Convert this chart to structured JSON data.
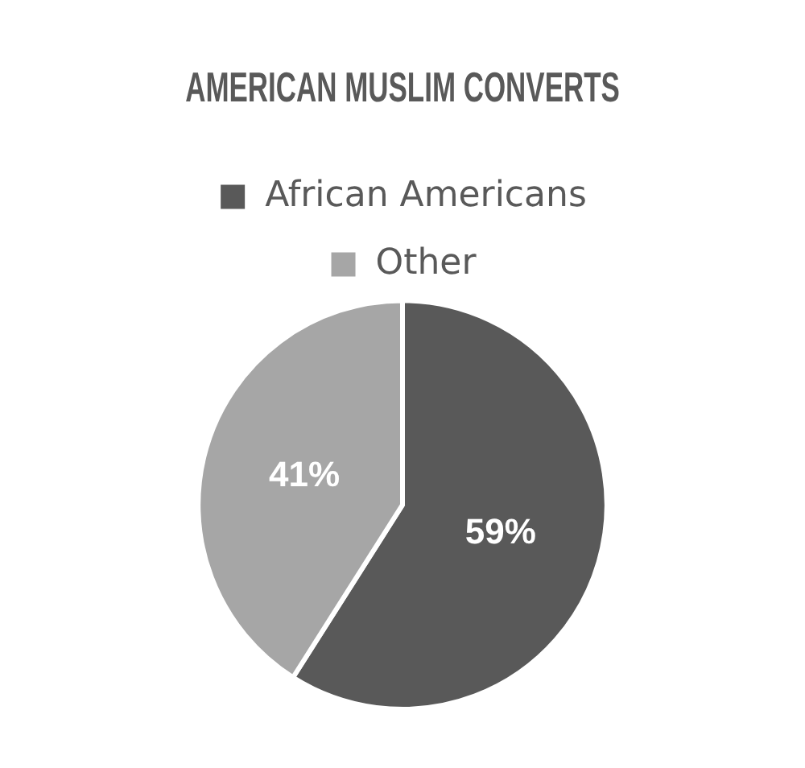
{
  "chart_data": {
    "type": "pie",
    "title": "AMERICAN MUSLIM CONVERTS",
    "categories": [
      "African Americans",
      "Other"
    ],
    "values": [
      59,
      41
    ],
    "colors": [
      "#595959",
      "#a6a6a6"
    ],
    "value_labels": [
      "59%",
      "41%"
    ],
    "legend": "top"
  }
}
